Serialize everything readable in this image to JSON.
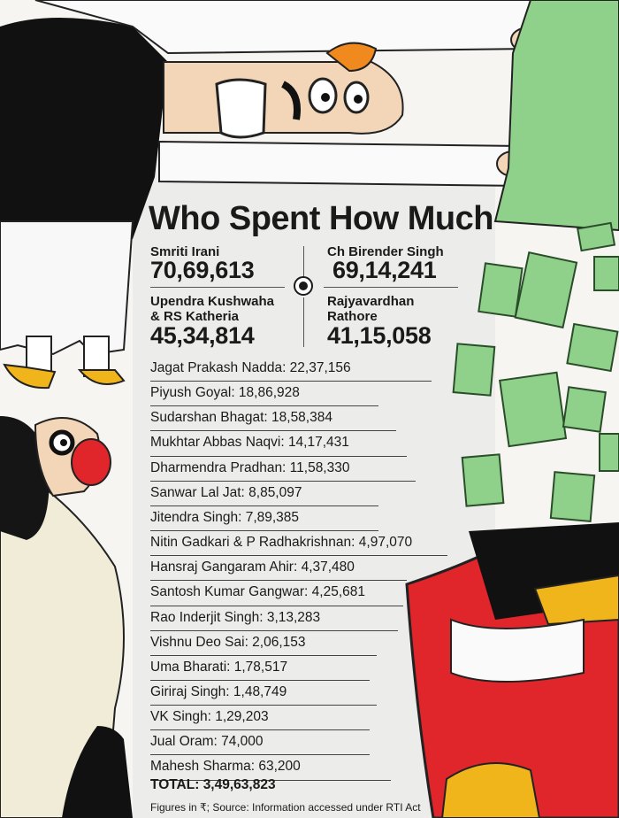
{
  "title": "Who Spent How Much",
  "top": [
    {
      "name": "Smriti Irani",
      "amount": "70,69,613"
    },
    {
      "name": "Ch Birender Singh",
      "amount": "69,14,241"
    },
    {
      "name_line1": "Upendra Kushwaha",
      "name_line2": "& RS Katheria",
      "amount": "45,34,814"
    },
    {
      "name_line1": "Rajyavardhan",
      "name_line2": "Rathore",
      "amount": "41,15,058"
    }
  ],
  "list": [
    "Jagat Prakash Nadda: 22,37,156",
    "Piyush Goyal: 18,86,928",
    "Sudarshan Bhagat: 18,58,384",
    "Mukhtar Abbas Naqvi: 14,17,431",
    "Dharmendra Pradhan: 11,58,330",
    "Sanwar Lal Jat: 8,85,097",
    "Jitendra Singh: 7,89,385",
    "Nitin Gadkari & P Radhakrishnan: 4,97,070",
    "Hansraj Gangaram Ahir: 4,37,480",
    "Santosh Kumar Gangwar: 4,25,681",
    "Rao Inderjit Singh: 3,13,283",
    "Vishnu Deo Sai: 2,06,153",
    "Uma Bharati: 1,78,517",
    "Giriraj Singh: 1,48,749",
    "VK Singh: 1,29,203",
    "Jual Oram: 74,000",
    "Mahesh Sharma: 63,200"
  ],
  "total": "TOTAL: 3,49,63,823",
  "source": "Figures in ₹; Source: Information accessed under RTI Act",
  "colors": {
    "cash": "#8fd18a",
    "red": "#e0252b",
    "dark": "#1a1a1a",
    "skin": "#f3d6b8"
  }
}
